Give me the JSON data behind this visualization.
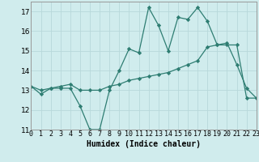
{
  "xlabel": "Humidex (Indice chaleur)",
  "ylabel": "",
  "x": [
    0,
    1,
    2,
    3,
    4,
    5,
    6,
    7,
    8,
    9,
    10,
    11,
    12,
    13,
    14,
    15,
    16,
    17,
    18,
    19,
    20,
    21,
    22,
    23
  ],
  "line1": [
    13.2,
    12.8,
    13.1,
    13.1,
    13.1,
    12.2,
    11.0,
    11.0,
    13.0,
    14.0,
    15.1,
    14.9,
    17.2,
    16.3,
    15.0,
    16.7,
    16.6,
    17.2,
    16.5,
    15.3,
    15.4,
    14.3,
    13.1,
    12.6
  ],
  "line2": [
    13.2,
    13.0,
    13.1,
    13.2,
    13.3,
    13.0,
    13.0,
    13.0,
    13.2,
    13.3,
    13.5,
    13.6,
    13.7,
    13.8,
    13.9,
    14.1,
    14.3,
    14.5,
    15.2,
    15.3,
    15.3,
    15.3,
    12.6,
    12.6
  ],
  "line_color": "#2e7d72",
  "bg_color": "#d0eced",
  "grid_major_color": "#b8d8da",
  "grid_minor_color": "#c8e4e6",
  "ylim": [
    11,
    17.5
  ],
  "xlim": [
    0,
    23
  ],
  "yticks": [
    11,
    12,
    13,
    14,
    15,
    16,
    17
  ],
  "xticks": [
    0,
    1,
    2,
    3,
    4,
    5,
    6,
    7,
    8,
    9,
    10,
    11,
    12,
    13,
    14,
    15,
    16,
    17,
    18,
    19,
    20,
    21,
    22,
    23
  ],
  "tick_fontsize": 6,
  "xlabel_fontsize": 7
}
